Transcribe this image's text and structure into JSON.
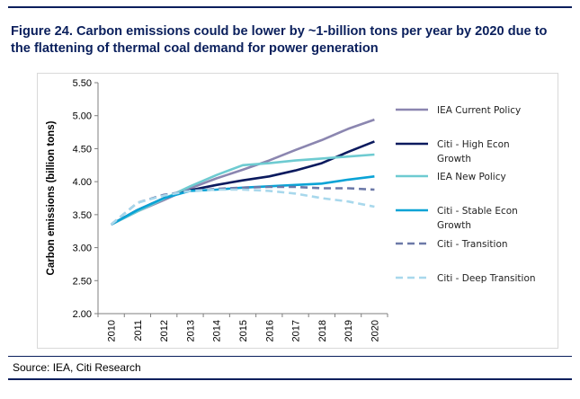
{
  "figure": {
    "title": "Figure 24. Carbon emissions could be lower by ~1-billion tons per year by 2020 due to the flattening of thermal coal demand for power generation",
    "source": "Source: IEA, Citi Research"
  },
  "chart_data": {
    "type": "line",
    "title": "",
    "xlabel": "",
    "ylabel": "Carbon emissions (billion tons)",
    "ylim": [
      2.0,
      5.5
    ],
    "yticks": [
      "2.00",
      "2.50",
      "3.00",
      "3.50",
      "4.00",
      "4.50",
      "5.00",
      "5.50"
    ],
    "categories": [
      "2010",
      "2011",
      "2012",
      "2013",
      "2014",
      "2015",
      "2016",
      "2017",
      "2018",
      "2019",
      "2020"
    ],
    "grid": false,
    "legend_position": "right",
    "series": [
      {
        "name": "IEA Current Policy",
        "color": "#8b86b0",
        "dash": "solid",
        "values": [
          3.35,
          3.55,
          3.72,
          3.9,
          4.05,
          4.18,
          4.32,
          4.48,
          4.63,
          4.8,
          4.94
        ]
      },
      {
        "name": "Citi - High Econ Growth",
        "color": "#0b1a5e",
        "dash": "solid",
        "values": [
          3.35,
          3.57,
          3.75,
          3.87,
          3.95,
          4.02,
          4.08,
          4.17,
          4.28,
          4.45,
          4.61
        ]
      },
      {
        "name": "IEA New Policy",
        "color": "#6ecbd1",
        "dash": "solid",
        "values": [
          3.35,
          3.55,
          3.74,
          3.93,
          4.1,
          4.25,
          4.28,
          4.32,
          4.35,
          4.38,
          4.41
        ]
      },
      {
        "name": "Citi - Stable Econ Growth",
        "color": "#0aa3d6",
        "dash": "solid",
        "values": [
          3.35,
          3.57,
          3.75,
          3.86,
          3.88,
          3.91,
          3.93,
          3.95,
          3.97,
          4.03,
          4.08
        ]
      },
      {
        "name": "Citi - Transition",
        "color": "#6c79a8",
        "dash": "dashed",
        "values": [
          3.35,
          3.68,
          3.8,
          3.86,
          3.89,
          3.91,
          3.92,
          3.92,
          3.9,
          3.9,
          3.88
        ]
      },
      {
        "name": "Citi - Deep Transition",
        "color": "#a8d8ec",
        "dash": "dashed",
        "values": [
          3.35,
          3.68,
          3.79,
          3.86,
          3.88,
          3.88,
          3.86,
          3.82,
          3.75,
          3.7,
          3.62
        ]
      }
    ]
  }
}
